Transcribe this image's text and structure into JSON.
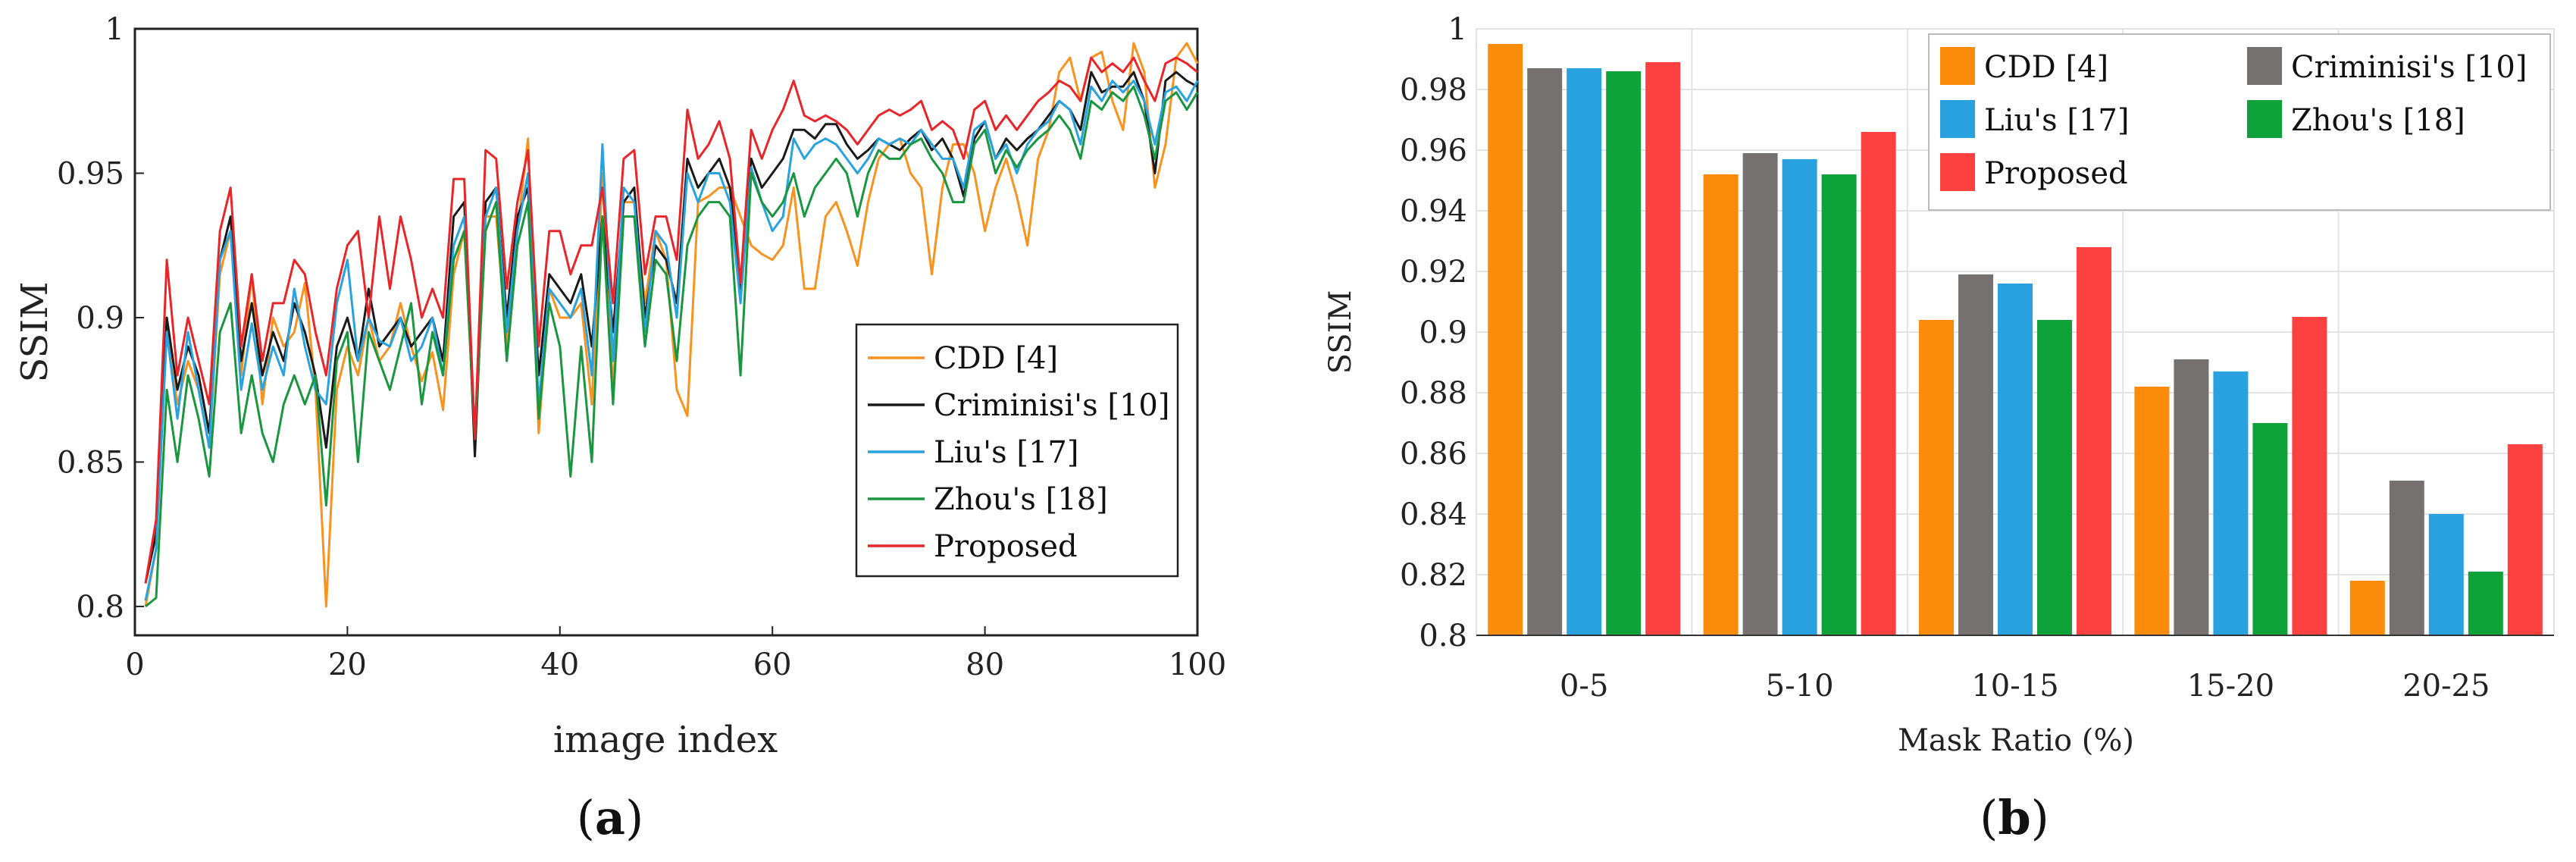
{
  "chart_data": [
    {
      "type": "line",
      "panel_label": "a",
      "xlabel": "image index",
      "ylabel": "SSIM",
      "xlim": [
        0,
        100
      ],
      "ylim": [
        0.79,
        1.0
      ],
      "xticks": [
        "0",
        "20",
        "40",
        "60",
        "80",
        "100"
      ],
      "yticks": [
        "0.8",
        "0.85",
        "0.9",
        "0.95",
        "1"
      ],
      "legend_position": "lower-right",
      "x": [
        1,
        2,
        3,
        4,
        5,
        6,
        7,
        8,
        9,
        10,
        11,
        12,
        13,
        14,
        15,
        16,
        17,
        18,
        19,
        20,
        21,
        22,
        23,
        24,
        25,
        26,
        27,
        28,
        29,
        30,
        31,
        32,
        33,
        34,
        35,
        36,
        37,
        38,
        39,
        40,
        41,
        42,
        43,
        44,
        45,
        46,
        47,
        48,
        49,
        50,
        51,
        52,
        53,
        54,
        55,
        56,
        57,
        58,
        59,
        60,
        61,
        62,
        63,
        64,
        65,
        66,
        67,
        68,
        69,
        70,
        71,
        72,
        73,
        74,
        75,
        76,
        77,
        78,
        79,
        80,
        81,
        82,
        83,
        84,
        85,
        86,
        87,
        88,
        89,
        90,
        91,
        92,
        93,
        94,
        95,
        96,
        97,
        98,
        99,
        100
      ],
      "series": [
        {
          "name": "CDD [4]",
          "color": "#f7931e",
          "values": [
            0.8,
            0.82,
            0.895,
            0.87,
            0.885,
            0.875,
            0.855,
            0.915,
            0.93,
            0.88,
            0.915,
            0.87,
            0.9,
            0.89,
            0.895,
            0.912,
            0.875,
            0.8,
            0.875,
            0.89,
            0.88,
            0.9,
            0.885,
            0.89,
            0.905,
            0.89,
            0.878,
            0.888,
            0.868,
            0.915,
            0.93,
            0.86,
            0.935,
            0.935,
            0.89,
            0.93,
            0.962,
            0.86,
            0.91,
            0.9,
            0.9,
            0.905,
            0.87,
            0.95,
            0.875,
            0.94,
            0.94,
            0.905,
            0.93,
            0.92,
            0.875,
            0.866,
            0.94,
            0.942,
            0.945,
            0.945,
            0.935,
            0.925,
            0.922,
            0.92,
            0.925,
            0.945,
            0.91,
            0.91,
            0.935,
            0.94,
            0.93,
            0.918,
            0.94,
            0.955,
            0.96,
            0.962,
            0.95,
            0.945,
            0.915,
            0.945,
            0.96,
            0.96,
            0.95,
            0.93,
            0.945,
            0.955,
            0.942,
            0.925,
            0.955,
            0.965,
            0.985,
            0.99,
            0.975,
            0.99,
            0.992,
            0.975,
            0.965,
            0.995,
            0.985,
            0.945,
            0.96,
            0.99,
            0.995,
            0.988
          ]
        },
        {
          "name": "Criminisi's [10]",
          "color": "#1a1a1a",
          "values": [
            0.808,
            0.825,
            0.9,
            0.875,
            0.89,
            0.88,
            0.86,
            0.92,
            0.935,
            0.885,
            0.905,
            0.88,
            0.895,
            0.885,
            0.905,
            0.895,
            0.88,
            0.855,
            0.89,
            0.9,
            0.885,
            0.91,
            0.89,
            0.895,
            0.9,
            0.89,
            0.895,
            0.9,
            0.885,
            0.935,
            0.94,
            0.852,
            0.94,
            0.945,
            0.9,
            0.935,
            0.945,
            0.88,
            0.915,
            0.91,
            0.905,
            0.915,
            0.89,
            0.935,
            0.895,
            0.94,
            0.945,
            0.9,
            0.925,
            0.92,
            0.905,
            0.955,
            0.945,
            0.95,
            0.955,
            0.945,
            0.91,
            0.955,
            0.945,
            0.95,
            0.955,
            0.965,
            0.965,
            0.962,
            0.967,
            0.967,
            0.96,
            0.955,
            0.958,
            0.962,
            0.96,
            0.958,
            0.962,
            0.965,
            0.958,
            0.962,
            0.955,
            0.942,
            0.962,
            0.968,
            0.955,
            0.962,
            0.958,
            0.962,
            0.965,
            0.97,
            0.975,
            0.972,
            0.965,
            0.985,
            0.978,
            0.98,
            0.98,
            0.985,
            0.975,
            0.95,
            0.982,
            0.985,
            0.982,
            0.98
          ]
        },
        {
          "name": "Liu's [17]",
          "color": "#29a3df",
          "values": [
            0.802,
            0.82,
            0.895,
            0.865,
            0.895,
            0.875,
            0.855,
            0.92,
            0.93,
            0.875,
            0.898,
            0.875,
            0.89,
            0.88,
            0.91,
            0.89,
            0.875,
            0.87,
            0.905,
            0.92,
            0.885,
            0.9,
            0.892,
            0.89,
            0.9,
            0.885,
            0.89,
            0.9,
            0.88,
            0.925,
            0.935,
            0.86,
            0.935,
            0.945,
            0.895,
            0.93,
            0.95,
            0.87,
            0.91,
            0.905,
            0.9,
            0.91,
            0.88,
            0.96,
            0.885,
            0.945,
            0.94,
            0.895,
            0.93,
            0.925,
            0.9,
            0.95,
            0.94,
            0.95,
            0.95,
            0.94,
            0.905,
            0.952,
            0.94,
            0.93,
            0.935,
            0.962,
            0.955,
            0.96,
            0.962,
            0.96,
            0.955,
            0.95,
            0.955,
            0.962,
            0.96,
            0.962,
            0.96,
            0.965,
            0.96,
            0.955,
            0.955,
            0.945,
            0.965,
            0.968,
            0.955,
            0.96,
            0.95,
            0.96,
            0.965,
            0.968,
            0.975,
            0.972,
            0.96,
            0.98,
            0.975,
            0.982,
            0.978,
            0.982,
            0.975,
            0.96,
            0.978,
            0.98,
            0.975,
            0.982
          ]
        },
        {
          "name": "Zhou's [18]",
          "color": "#1a9641",
          "values": [
            0.8,
            0.803,
            0.875,
            0.85,
            0.88,
            0.865,
            0.845,
            0.895,
            0.905,
            0.86,
            0.88,
            0.86,
            0.85,
            0.87,
            0.88,
            0.87,
            0.88,
            0.835,
            0.885,
            0.895,
            0.85,
            0.895,
            0.885,
            0.875,
            0.89,
            0.905,
            0.87,
            0.895,
            0.88,
            0.92,
            0.93,
            0.858,
            0.93,
            0.94,
            0.885,
            0.925,
            0.94,
            0.865,
            0.905,
            0.89,
            0.845,
            0.89,
            0.85,
            0.935,
            0.87,
            0.935,
            0.935,
            0.89,
            0.92,
            0.915,
            0.885,
            0.925,
            0.935,
            0.94,
            0.94,
            0.935,
            0.88,
            0.95,
            0.94,
            0.935,
            0.94,
            0.95,
            0.935,
            0.945,
            0.95,
            0.955,
            0.95,
            0.935,
            0.95,
            0.958,
            0.955,
            0.955,
            0.96,
            0.962,
            0.955,
            0.95,
            0.94,
            0.94,
            0.96,
            0.965,
            0.95,
            0.958,
            0.952,
            0.958,
            0.962,
            0.965,
            0.97,
            0.965,
            0.955,
            0.975,
            0.972,
            0.978,
            0.975,
            0.98,
            0.97,
            0.955,
            0.975,
            0.978,
            0.972,
            0.978
          ]
        },
        {
          "name": "Proposed",
          "color": "#e8262a",
          "values": [
            0.808,
            0.83,
            0.92,
            0.88,
            0.9,
            0.885,
            0.87,
            0.93,
            0.945,
            0.89,
            0.915,
            0.885,
            0.905,
            0.905,
            0.92,
            0.915,
            0.895,
            0.88,
            0.91,
            0.925,
            0.93,
            0.9,
            0.935,
            0.91,
            0.935,
            0.92,
            0.9,
            0.91,
            0.9,
            0.948,
            0.948,
            0.858,
            0.958,
            0.955,
            0.91,
            0.94,
            0.958,
            0.89,
            0.93,
            0.93,
            0.915,
            0.925,
            0.925,
            0.945,
            0.905,
            0.955,
            0.958,
            0.915,
            0.935,
            0.935,
            0.92,
            0.972,
            0.955,
            0.96,
            0.968,
            0.955,
            0.912,
            0.965,
            0.955,
            0.965,
            0.972,
            0.982,
            0.97,
            0.968,
            0.97,
            0.968,
            0.965,
            0.96,
            0.965,
            0.97,
            0.972,
            0.97,
            0.972,
            0.975,
            0.965,
            0.968,
            0.965,
            0.955,
            0.972,
            0.975,
            0.965,
            0.97,
            0.965,
            0.97,
            0.975,
            0.978,
            0.982,
            0.98,
            0.975,
            0.99,
            0.985,
            0.988,
            0.985,
            0.99,
            0.982,
            0.975,
            0.988,
            0.99,
            0.988,
            0.985
          ]
        }
      ]
    },
    {
      "type": "bar",
      "panel_label": "b",
      "xlabel": "Mask Ratio (%)",
      "ylabel": "SSIM",
      "ylim": [
        0.8,
        1.0
      ],
      "yticks": [
        "0.8",
        "0.82",
        "0.84",
        "0.86",
        "0.88",
        "0.9",
        "0.92",
        "0.94",
        "0.96",
        "0.98",
        "1"
      ],
      "grid": true,
      "legend_position": "top-right",
      "categories": [
        "0-5",
        "5-10",
        "10-15",
        "15-20",
        "20-25"
      ],
      "series": [
        {
          "name": "CDD [4]",
          "color": "#fb8b0a",
          "values": [
            0.995,
            0.952,
            0.904,
            0.882,
            0.818
          ]
        },
        {
          "name": "Criminisi's [10]",
          "color": "#767171",
          "values": [
            0.987,
            0.959,
            0.919,
            0.891,
            0.851
          ]
        },
        {
          "name": "Liu's [17]",
          "color": "#2aa1df",
          "values": [
            0.987,
            0.957,
            0.916,
            0.887,
            0.84
          ]
        },
        {
          "name": "Zhou's [18]",
          "color": "#10a23a",
          "values": [
            0.986,
            0.952,
            0.904,
            0.87,
            0.821
          ]
        },
        {
          "name": "Proposed",
          "color": "#fd4040",
          "values": [
            0.989,
            0.966,
            0.928,
            0.905,
            0.863
          ]
        }
      ],
      "legend_order": [
        0,
        1,
        2,
        3,
        4
      ]
    }
  ]
}
